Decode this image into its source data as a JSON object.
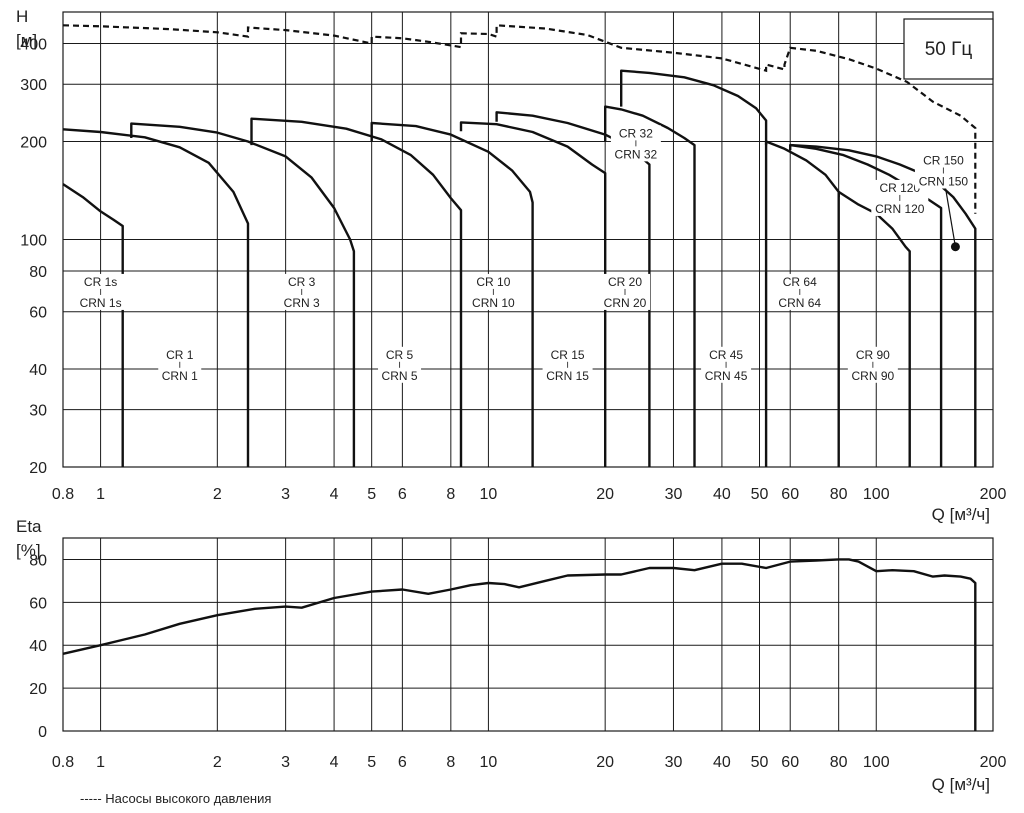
{
  "chart_data": [
    {
      "type": "line",
      "subtitle": "50 Гц",
      "ylabel": "H",
      "yunit": "[м]",
      "xlabel": "Q [м³/ч]",
      "xscale": "log",
      "yscale": "log",
      "xlim": [
        0.8,
        200
      ],
      "ylim": [
        20,
        500
      ],
      "xticks": [
        0.8,
        1,
        2,
        3,
        4,
        5,
        6,
        8,
        10,
        20,
        30,
        40,
        50,
        60,
        80,
        100,
        200
      ],
      "xtick_labels": [
        "0.8",
        "1",
        "2",
        "3",
        "4",
        "5",
        "6",
        "8",
        "10",
        "20",
        "30",
        "40",
        "50",
        "60",
        "80",
        "100",
        "200"
      ],
      "yticks": [
        20,
        30,
        40,
        60,
        80,
        100,
        200,
        300,
        400
      ],
      "ytick_labels": [
        "20",
        "30",
        "40",
        "60",
        "80",
        "100",
        "200",
        "300",
        "400"
      ],
      "xgrid": [
        0.8,
        1,
        2,
        3,
        4,
        5,
        6,
        8,
        10,
        20,
        30,
        40,
        50,
        60,
        80,
        100
      ],
      "ygrid": [
        30,
        40,
        60,
        80,
        100,
        200,
        300,
        400
      ],
      "grid": true,
      "series": [
        {
          "name": "CR 1s",
          "x": [
            0.8,
            0.9,
            1.0,
            1.08,
            1.14,
            1.14
          ],
          "y": [
            148,
            135,
            122,
            115,
            110,
            20
          ]
        },
        {
          "name": "CR 1",
          "x": [
            0.8,
            1.0,
            1.3,
            1.6,
            1.9,
            2.2,
            2.4,
            2.4
          ],
          "y": [
            218,
            214,
            206,
            192,
            172,
            140,
            112,
            20
          ]
        },
        {
          "name": "CR 3",
          "x": [
            1.2,
            1.2,
            1.6,
            2.0,
            2.4,
            3.0,
            3.5,
            4.0,
            4.4,
            4.5,
            4.5
          ],
          "y": [
            205,
            227,
            222,
            213,
            200,
            180,
            155,
            125,
            100,
            92,
            20
          ]
        },
        {
          "name": "CR 5",
          "x": [
            2.45,
            2.45,
            3.3,
            4.3,
            5.3,
            6.3,
            7.2,
            8.0,
            8.5,
            8.5
          ],
          "y": [
            195,
            235,
            230,
            219,
            203,
            182,
            158,
            134,
            123,
            20
          ]
        },
        {
          "name": "CR 10",
          "x": [
            5.0,
            5.0,
            6.5,
            8.0,
            10.0,
            11.5,
            12.8,
            13.0,
            13.0
          ],
          "y": [
            200,
            228,
            223,
            210,
            186,
            163,
            140,
            130,
            20
          ]
        },
        {
          "name": "CR 15",
          "x": [
            8.5,
            8.5,
            10.5,
            13.0,
            16.0,
            18.5,
            20.0,
            20.0
          ],
          "y": [
            215,
            229,
            226,
            214,
            193,
            170,
            160,
            20
          ]
        },
        {
          "name": "CR 20",
          "x": [
            10.5,
            10.5,
            13.0,
            16.0,
            20.0,
            23.0,
            26.0,
            26.0
          ],
          "y": [
            230,
            246,
            240,
            228,
            210,
            193,
            170,
            20
          ]
        },
        {
          "name": "CR 32",
          "x": [
            20.0,
            20.0,
            22.0,
            25.0,
            29.0,
            32.0,
            34.0,
            34.0
          ],
          "y": [
            200,
            256,
            251,
            240,
            220,
            205,
            195,
            20
          ]
        },
        {
          "name": "CR 45",
          "x": [
            22.0,
            22.0,
            26.0,
            32.0,
            38.0,
            44.0,
            49.0,
            52.0,
            52.0
          ],
          "y": [
            256,
            330,
            325,
            315,
            298,
            276,
            253,
            232,
            20
          ]
        },
        {
          "name": "CR 64",
          "x": [
            52.0,
            52.0,
            58.0,
            66.0,
            74.0,
            80.0,
            80.0
          ],
          "y": [
            195,
            200,
            190,
            175,
            158,
            140,
            20
          ]
        },
        {
          "name": "CR 90",
          "x": [
            80.0,
            80.0,
            90.0,
            100.0,
            110.0,
            119.0,
            122.0,
            122.0
          ],
          "y": [
            135,
            140,
            128,
            120,
            108,
            95,
            92,
            20
          ]
        },
        {
          "name": "CR 120",
          "x": [
            60.0,
            60.0,
            70.0,
            82.0,
            95.0,
            108.0,
            122.0,
            136.0,
            147.0,
            147.0
          ],
          "y": [
            188,
            195,
            190,
            182,
            170,
            158,
            145,
            133,
            125,
            20
          ]
        },
        {
          "name": "CR 150",
          "x": [
            60.0,
            70.0,
            85.0,
            100.0,
            115.0,
            130.0,
            145.0,
            158.0,
            170.0,
            180.0,
            180.0
          ],
          "y": [
            195,
            193,
            188,
            180,
            170,
            160,
            148,
            135,
            120,
            108,
            20
          ]
        }
      ],
      "high_pressure_envelope": {
        "name": "Насосы высокого давления",
        "x": [
          0.8,
          1.0,
          1.5,
          2.0,
          2.4,
          2.4,
          3.0,
          4.0,
          5.0,
          5.0,
          6.0,
          7.0,
          8.5,
          8.5,
          10.0,
          10.5,
          10.5,
          14.0,
          18.0,
          22.0,
          30.0,
          40.0,
          52.0,
          52.0,
          58.0,
          58.0,
          60.0,
          70.0,
          85.0,
          100.0,
          120.0,
          140.0,
          165.0,
          180.0,
          180.0
        ],
        "y": [
          455,
          452,
          443,
          433,
          420,
          448,
          440,
          423,
          400,
          420,
          415,
          405,
          390,
          430,
          428,
          420,
          455,
          445,
          425,
          388,
          375,
          360,
          330,
          345,
          333,
          345,
          388,
          380,
          358,
          335,
          305,
          265,
          240,
          220,
          120
        ]
      },
      "point_labels": [
        {
          "line1": "CR 1s",
          "line2": "CRN 1s",
          "x": 1.0,
          "y": 72
        },
        {
          "line1": "CR 1",
          "line2": "CRN 1",
          "x": 1.6,
          "y": 43
        },
        {
          "line1": "CR 3",
          "line2": "CRN 3",
          "x": 3.3,
          "y": 72
        },
        {
          "line1": "CR 5",
          "line2": "CRN 5",
          "x": 5.9,
          "y": 43
        },
        {
          "line1": "CR 10",
          "line2": "CRN 10",
          "x": 10.3,
          "y": 72
        },
        {
          "line1": "CR 15",
          "line2": "CRN 15",
          "x": 16.0,
          "y": 43
        },
        {
          "line1": "CR 20",
          "line2": "CRN 20",
          "x": 22.5,
          "y": 72
        },
        {
          "line1": "CR 32",
          "line2": "CRN 32",
          "x": 24.0,
          "y": 206
        },
        {
          "line1": "CR 45",
          "line2": "CRN 45",
          "x": 41.0,
          "y": 43
        },
        {
          "line1": "CR 64",
          "line2": "CRN 64",
          "x": 63.5,
          "y": 72
        },
        {
          "line1": "CR 90",
          "line2": "CRN 90",
          "x": 98.0,
          "y": 43
        },
        {
          "line1": "CR 120",
          "line2": "CRN 120",
          "x": 115.0,
          "y": 140
        },
        {
          "line1": "CR 150",
          "line2": "CRN 150",
          "x": 149.0,
          "y": 170
        }
      ],
      "marker": {
        "x": 160.0,
        "y": 95
      }
    },
    {
      "type": "line",
      "ylabel": "Eta",
      "yunit": "[%]",
      "xlabel": "Q [м³/ч]",
      "xscale": "log",
      "xlim": [
        0.8,
        200
      ],
      "ylim": [
        0,
        90
      ],
      "xticks": [
        0.8,
        1,
        2,
        3,
        4,
        5,
        6,
        8,
        10,
        20,
        30,
        40,
        50,
        60,
        80,
        100,
        200
      ],
      "xtick_labels": [
        "0.8",
        "1",
        "2",
        "3",
        "4",
        "5",
        "6",
        "8",
        "10",
        "20",
        "30",
        "40",
        "50",
        "60",
        "80",
        "100",
        "200"
      ],
      "yticks": [
        0,
        20,
        40,
        60,
        80
      ],
      "ytick_labels": [
        "0",
        "20",
        "40",
        "60",
        "80"
      ],
      "xgrid": [
        0.8,
        1,
        2,
        3,
        4,
        5,
        6,
        8,
        10,
        20,
        30,
        40,
        50,
        60,
        80,
        100
      ],
      "ygrid": [
        20,
        40,
        60,
        80
      ],
      "grid": true,
      "series": [
        {
          "name": "Eta",
          "x": [
            0.8,
            1.0,
            1.3,
            1.6,
            2.0,
            2.5,
            3.0,
            3.3,
            4.0,
            5.0,
            6.0,
            7.0,
            8.0,
            9.0,
            10.0,
            11.0,
            12.0,
            14.0,
            16.0,
            20.0,
            22.0,
            26.0,
            30.0,
            34.0,
            40.0,
            45.0,
            52.0,
            60.0,
            70.0,
            80.0,
            85.0,
            90.0,
            100.0,
            110.0,
            125.0,
            140.0,
            150.0,
            165.0,
            175.0,
            180.0,
            180.0
          ],
          "y": [
            36,
            40,
            45,
            50,
            54,
            57,
            58,
            57.5,
            62,
            65,
            66,
            64,
            66,
            68,
            69,
            68.5,
            67,
            70,
            72.5,
            73,
            73,
            76,
            76,
            75,
            78,
            78,
            76,
            79,
            79.5,
            80,
            80,
            79,
            74.5,
            75,
            74.5,
            72,
            72.5,
            72,
            71,
            69,
            0
          ]
        }
      ]
    }
  ],
  "legend_text": "----- Насосы высокого давления"
}
